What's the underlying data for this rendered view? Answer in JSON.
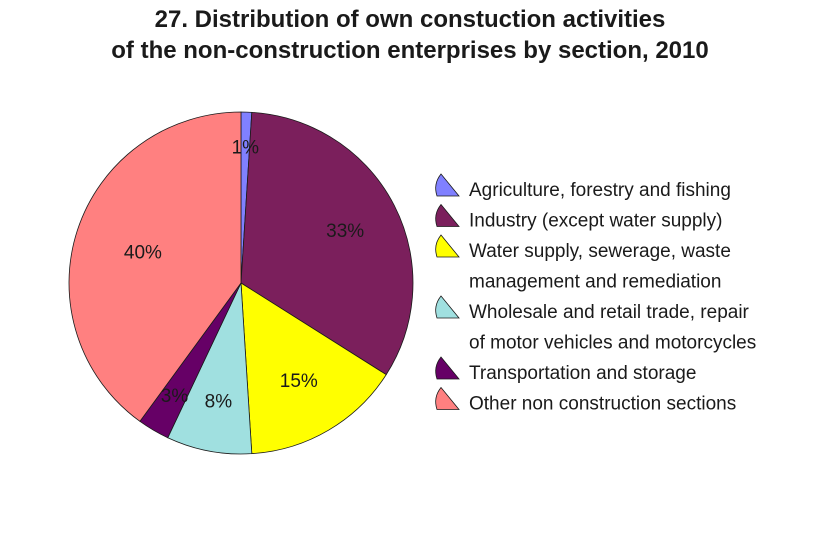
{
  "chart_data": {
    "type": "pie",
    "title_lines": [
      "27. Distribution of own constuction activities",
      "of the non-construction enterprises by section, 2010"
    ],
    "slices": [
      {
        "name_lines": [
          "Agriculture, forestry and fishing"
        ],
        "value": 1,
        "label": "1%",
        "color": "#8080ff"
      },
      {
        "name_lines": [
          "Industry (except water supply)"
        ],
        "value": 33,
        "label": "33%",
        "color": "#7b1f5c"
      },
      {
        "name_lines": [
          "Water supply, sewerage, waste",
          "management and remediation"
        ],
        "value": 15,
        "label": "15%",
        "color": "#ffff00"
      },
      {
        "name_lines": [
          "Wholesale and retail trade, repair",
          "of motor vehicles and motorcycles"
        ],
        "value": 8,
        "label": "8%",
        "color": "#a0e0e0"
      },
      {
        "name_lines": [
          "Transportation and storage"
        ],
        "value": 3,
        "label": "3%",
        "color": "#660066"
      },
      {
        "name_lines": [
          "Other non construction sections"
        ],
        "value": 40,
        "label": "40%",
        "color": "#ff8080"
      }
    ],
    "legend_position": "right"
  }
}
